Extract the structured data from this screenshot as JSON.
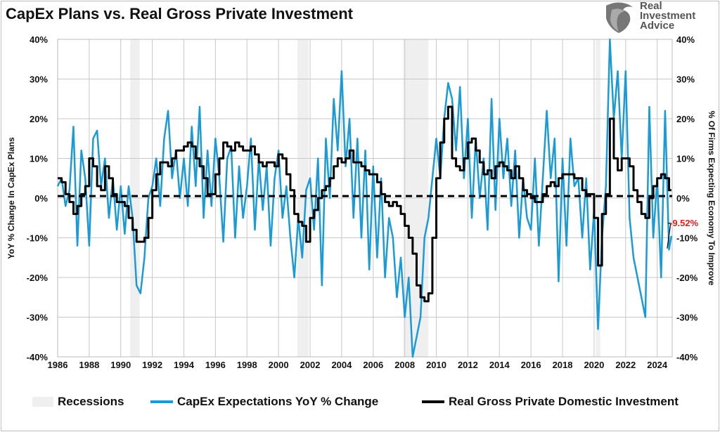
{
  "chart_data": {
    "type": "line",
    "title": "CapEx Plans vs. Real Gross Private Investment",
    "ylabel": "YoY % Change In CapEx Plans",
    "y2label": "% Of Firms Expecting Economy To Improve",
    "xlim": [
      1986,
      2025
    ],
    "ylim": [
      -40,
      40
    ],
    "y2lim": [
      -40,
      40
    ],
    "x_ticks": [
      "1986",
      "1988",
      "1990",
      "1992",
      "1994",
      "1996",
      "1998",
      "2000",
      "2002",
      "2004",
      "2006",
      "2008",
      "2010",
      "2012",
      "2014",
      "2016",
      "2018",
      "2020",
      "2022",
      "2024"
    ],
    "y_ticks": [
      "40%",
      "30%",
      "20%",
      "10%",
      "0%",
      "-10%",
      "-20%",
      "-30%",
      "-40%"
    ],
    "y2_ticks": [
      "40%",
      "30%",
      "20%",
      "10%",
      "0%",
      "-10%",
      "-20%",
      "-30%",
      "-40%"
    ],
    "grid": true,
    "legend_position": "bottom",
    "x_start": 1986,
    "x_step": 0.25,
    "recessions": [
      [
        1990.6,
        1991.2
      ],
      [
        2001.2,
        2001.9
      ],
      [
        2007.9,
        2009.5
      ],
      [
        2020.1,
        2020.4
      ]
    ],
    "reference_line": 0.5,
    "annotation": {
      "text": "-9.52%",
      "color": "#e0201b",
      "x": 2024.9,
      "y": -9.52
    },
    "series": [
      {
        "name": "CapEx Expectations YoY % Change",
        "color": "#1a9ad6",
        "values": [
          3,
          5,
          -2,
          2,
          18,
          -12,
          12,
          5,
          -12,
          15,
          17,
          3,
          10,
          -5,
          5,
          -8,
          3,
          -9,
          3,
          -5,
          -22,
          -24,
          -15,
          0,
          3,
          10,
          -2,
          15,
          22,
          5,
          12,
          0,
          10,
          -2,
          18,
          3,
          23,
          -5,
          12,
          -2,
          15,
          5,
          -11,
          10,
          13,
          -10,
          8,
          -5,
          3,
          15,
          -8,
          10,
          -3,
          8,
          -12,
          5,
          12,
          -5,
          3,
          -10,
          -20,
          -5,
          -15,
          2,
          5,
          -8,
          10,
          -22,
          15,
          0,
          25,
          12,
          32,
          8,
          20,
          -5,
          15,
          -10,
          12,
          -18,
          8,
          -15,
          5,
          -20,
          -5,
          -10,
          -25,
          -15,
          -30,
          -20,
          -40,
          -35,
          -30,
          -10,
          -5,
          5,
          15,
          5,
          20,
          29,
          25,
          12,
          28,
          5,
          20,
          -5,
          15,
          0,
          10,
          -8,
          25,
          -3,
          20,
          5,
          15,
          -2,
          12,
          -10,
          5,
          -5,
          -8,
          10,
          -12,
          5,
          22,
          5,
          15,
          -21,
          10,
          -12,
          15,
          3,
          5,
          -10,
          5,
          -18,
          -3,
          -33,
          -10,
          3,
          40,
          20,
          32,
          10,
          32,
          -5,
          -15,
          -20,
          -25,
          -30,
          23,
          -10,
          5,
          -20,
          22,
          -13,
          -9.52
        ]
      },
      {
        "name": "Real Gross Private Domestic Investment",
        "color": "#000000",
        "values": [
          5,
          4,
          1,
          -1,
          -4,
          -2,
          1,
          3,
          10,
          8,
          3,
          2,
          8,
          5,
          1,
          -1,
          -1,
          -2,
          -5,
          -8,
          -11,
          -11,
          -10,
          -5,
          2,
          6,
          9,
          9,
          8,
          10,
          12,
          12,
          13,
          14,
          13,
          10,
          8,
          5,
          1,
          1,
          6,
          10,
          14,
          13,
          12,
          14,
          13,
          12,
          12,
          13,
          11,
          9,
          8,
          9,
          9,
          8,
          11,
          10,
          6,
          2,
          -4,
          -6,
          -7,
          -11,
          -5,
          -3,
          0,
          2,
          3,
          5,
          8,
          10,
          9,
          10,
          12,
          9,
          9,
          8,
          7,
          6,
          6,
          4,
          1,
          -1,
          -2,
          -1,
          -2,
          -4,
          -7,
          -10,
          -14,
          -22,
          -25,
          -26,
          -24,
          -10,
          5,
          14,
          20,
          23,
          10,
          8,
          7,
          10,
          14,
          15,
          12,
          9,
          6,
          7,
          5,
          8,
          9,
          8,
          7,
          5,
          8,
          5,
          2,
          1,
          0,
          -1,
          -1,
          1,
          3,
          4,
          3,
          5,
          6,
          6,
          6,
          5,
          5,
          2,
          1,
          1,
          -5,
          -17,
          -4,
          1,
          20,
          10,
          7,
          10,
          10,
          8,
          2,
          -1,
          -4,
          -5,
          0,
          3,
          5,
          6,
          5,
          2,
          2
        ]
      }
    ],
    "recession_color": "#efefef",
    "legend": [
      "Recessions",
      "CapEx Expectations YoY % Change",
      "Real Gross Private Domestic Investment"
    ]
  },
  "logo": {
    "line1": "Real",
    "line2": "Investment",
    "line3": "Advice"
  }
}
